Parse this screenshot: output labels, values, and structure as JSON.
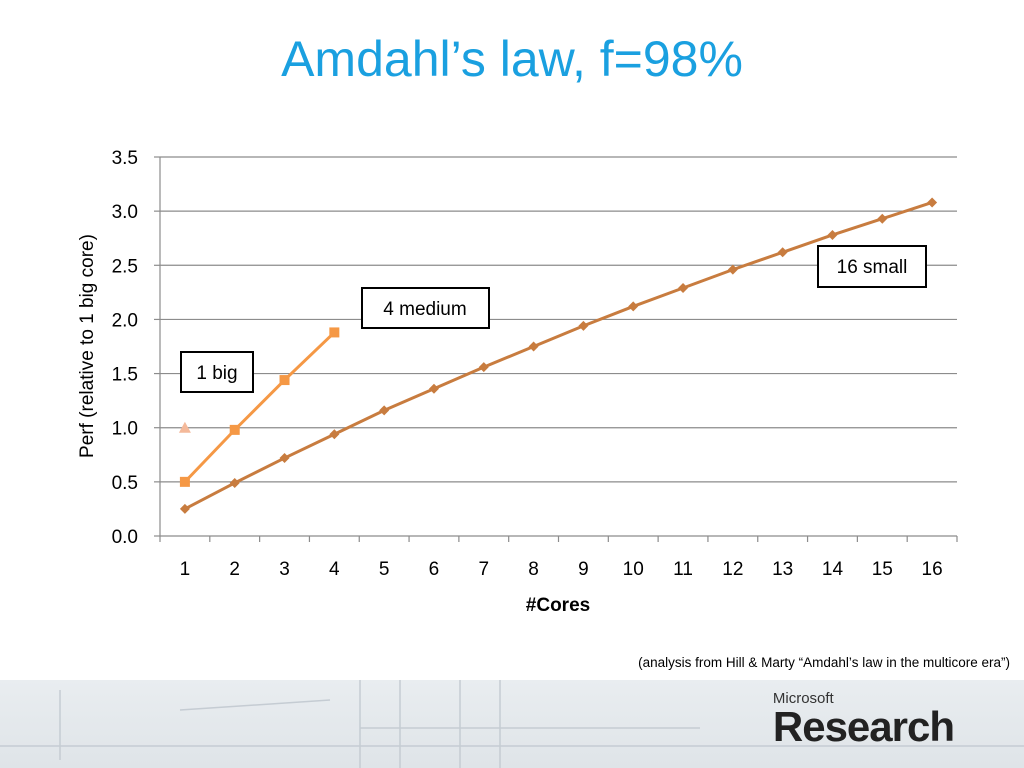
{
  "slide": {
    "title": "Amdahl’s law, f=98%",
    "source_note": "(analysis from Hill & Marty “Amdahl’s law in the multicore era”)",
    "logo_small": "Microsoft",
    "logo_big": "Research"
  },
  "chart_data": {
    "type": "line",
    "title": "",
    "xlabel": "#Cores",
    "ylabel": "Perf (relative to 1 big core)",
    "ylim": [
      0,
      3.5
    ],
    "ytick_labels": [
      "0.0",
      "0.5",
      "1.0",
      "1.5",
      "2.0",
      "2.5",
      "3.0",
      "3.5"
    ],
    "categories": [
      "1",
      "2",
      "3",
      "4",
      "5",
      "6",
      "7",
      "8",
      "9",
      "10",
      "11",
      "12",
      "13",
      "14",
      "15",
      "16"
    ],
    "grid": true,
    "series": [
      {
        "name": "1 big",
        "color": "#f4b99a",
        "marker": "triangle",
        "x": [
          1
        ],
        "values": [
          1.0
        ]
      },
      {
        "name": "4 medium",
        "color": "#f59845",
        "marker": "square",
        "x": [
          1,
          2,
          3,
          4
        ],
        "values": [
          0.5,
          0.98,
          1.44,
          1.88
        ]
      },
      {
        "name": "16 small",
        "color": "#c87c3f",
        "marker": "diamond",
        "x": [
          1,
          2,
          3,
          4,
          5,
          6,
          7,
          8,
          9,
          10,
          11,
          12,
          13,
          14,
          15,
          16
        ],
        "values": [
          0.25,
          0.49,
          0.72,
          0.94,
          1.16,
          1.36,
          1.56,
          1.75,
          1.94,
          2.12,
          2.29,
          2.46,
          2.62,
          2.78,
          2.93,
          3.08
        ]
      }
    ]
  }
}
